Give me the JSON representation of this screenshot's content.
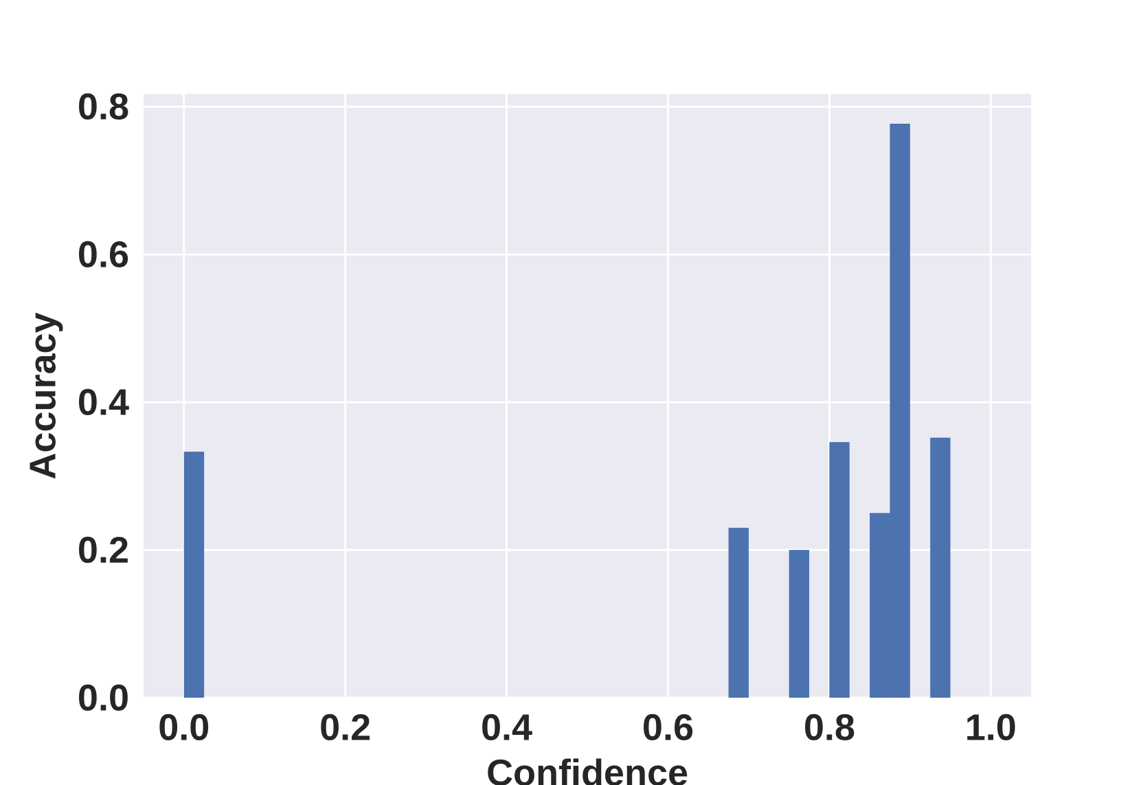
{
  "chart_data": {
    "type": "bar",
    "xlabel": "Confidence",
    "ylabel": "Accuracy",
    "x": [
      0.0,
      0.675,
      0.75,
      0.8,
      0.85,
      0.875,
      0.925
    ],
    "values": [
      0.333,
      0.23,
      0.2,
      0.346,
      0.25,
      0.777,
      0.352
    ],
    "bar_width": 0.025,
    "color": "#4c72b0",
    "xlim": [
      -0.05,
      1.05
    ],
    "ylim": [
      0,
      0.817
    ],
    "xticks": [
      {
        "value": 0,
        "label": "0.0"
      },
      {
        "value": 0.2,
        "label": "0.2"
      },
      {
        "value": 0.4,
        "label": "0.4"
      },
      {
        "value": 0.6,
        "label": "0.6"
      },
      {
        "value": 0.8,
        "label": "0.8"
      },
      {
        "value": 1,
        "label": "1.0"
      }
    ],
    "yticks": [
      {
        "value": 0,
        "label": "0.0"
      },
      {
        "value": 0.2,
        "label": "0.2"
      },
      {
        "value": 0.4,
        "label": "0.4"
      },
      {
        "value": 0.6,
        "label": "0.6"
      },
      {
        "value": 0.8,
        "label": "0.8"
      }
    ],
    "grid": true
  }
}
